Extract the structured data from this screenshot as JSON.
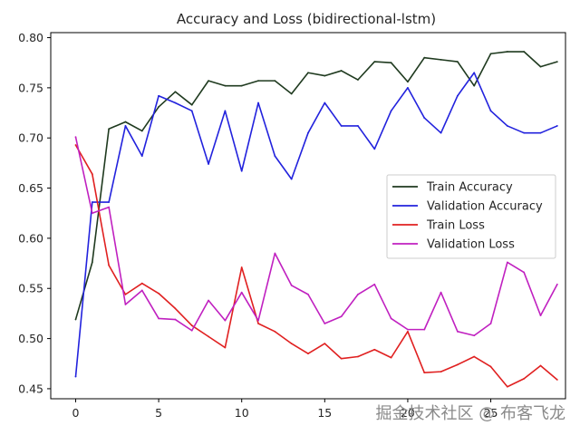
{
  "chart_data": {
    "type": "line",
    "title": "Accuracy and Loss (bidirectional-lstm)",
    "xlabel": "",
    "ylabel": "",
    "xlim": [
      -1.5,
      29.5
    ],
    "ylim": [
      0.44,
      0.805
    ],
    "xticks": [
      0,
      5,
      10,
      15,
      20,
      25
    ],
    "yticks": [
      0.45,
      0.5,
      0.55,
      0.6,
      0.65,
      0.7,
      0.75,
      0.8
    ],
    "x": [
      0,
      1,
      2,
      3,
      4,
      5,
      6,
      7,
      8,
      9,
      10,
      11,
      12,
      13,
      14,
      15,
      16,
      17,
      18,
      19,
      20,
      21,
      22,
      23,
      24,
      25,
      26,
      27,
      28,
      29
    ],
    "grid": false,
    "legend_position": "center-right",
    "series": [
      {
        "name": "Train Accuracy",
        "color": "#1f3a1f",
        "values": [
          0.519,
          0.576,
          0.709,
          0.716,
          0.707,
          0.731,
          0.746,
          0.733,
          0.757,
          0.752,
          0.752,
          0.757,
          0.757,
          0.744,
          0.765,
          0.762,
          0.767,
          0.758,
          0.776,
          0.775,
          0.756,
          0.78,
          0.778,
          0.776,
          0.752,
          0.784,
          0.786,
          0.786,
          0.771,
          0.776
        ]
      },
      {
        "name": "Validation Accuracy",
        "color": "#2222dd",
        "values": [
          0.462,
          0.636,
          0.636,
          0.712,
          0.682,
          0.742,
          0.735,
          0.727,
          0.674,
          0.727,
          0.667,
          0.735,
          0.682,
          0.659,
          0.705,
          0.735,
          0.712,
          0.712,
          0.689,
          0.727,
          0.75,
          0.72,
          0.705,
          0.742,
          0.765,
          0.727,
          0.712,
          0.705,
          0.705,
          0.712
        ]
      },
      {
        "name": "Train Loss",
        "color": "#e02020",
        "values": [
          0.693,
          0.664,
          0.573,
          0.544,
          0.555,
          0.545,
          0.53,
          0.513,
          0.502,
          0.491,
          0.571,
          0.515,
          0.507,
          0.495,
          0.485,
          0.495,
          0.48,
          0.482,
          0.489,
          0.481,
          0.507,
          0.466,
          0.467,
          0.474,
          0.482,
          0.472,
          0.452,
          0.46,
          0.473,
          0.459
        ]
      },
      {
        "name": "Validation Loss",
        "color": "#c020c0",
        "values": [
          0.701,
          0.625,
          0.631,
          0.534,
          0.548,
          0.52,
          0.519,
          0.508,
          0.538,
          0.518,
          0.546,
          0.518,
          0.585,
          0.553,
          0.544,
          0.515,
          0.522,
          0.544,
          0.554,
          0.52,
          0.509,
          0.509,
          0.546,
          0.507,
          0.503,
          0.515,
          0.576,
          0.566,
          0.523,
          0.554
        ]
      }
    ]
  },
  "watermark": "掘金技术社区 @ 布客飞龙"
}
